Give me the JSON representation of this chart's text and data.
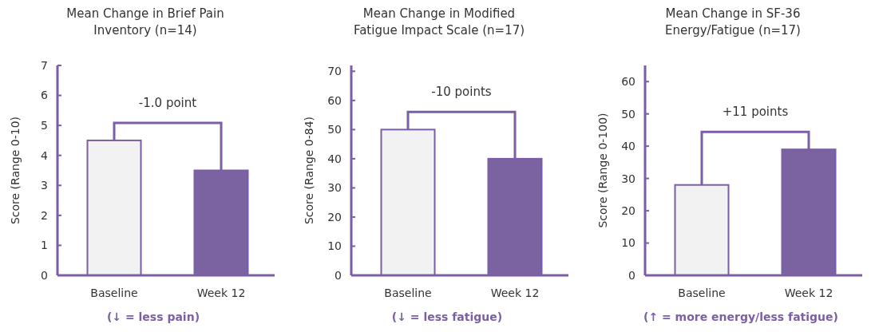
{
  "chart_data": [
    {
      "type": "bar",
      "title": "Mean Change in Brief Pain Inventory (n=14)",
      "ylabel": "Score (Range 0-10)",
      "categories": [
        "Baseline",
        "Week 12"
      ],
      "values": [
        4.5,
        3.5
      ],
      "colors": [
        "#f2f2f2",
        "#7b62a0"
      ],
      "ylim": [
        0,
        7
      ],
      "yticks": [
        0,
        1,
        2,
        3,
        4,
        5,
        6,
        7
      ],
      "annotations": [
        "-1.0 point",
        "(↓ = less pain)"
      ]
    },
    {
      "type": "bar",
      "title": "Mean Change in Modified Fatigue Impact Scale  (n=17)",
      "ylabel": "Score (Range 0-84)",
      "categories": [
        "Baseline",
        "Week 12"
      ],
      "values": [
        50,
        40
      ],
      "colors": [
        "#f2f2f2",
        "#7b62a0"
      ],
      "ylim": [
        0,
        72
      ],
      "yticks": [
        0,
        10,
        20,
        30,
        40,
        50,
        60,
        70
      ],
      "annotations": [
        "-10 points",
        "(↓ = less fatigue)"
      ]
    },
    {
      "type": "bar",
      "title": "Mean Change in SF-36 Energy/Fatigue (n=17)",
      "ylabel": "Score (Range 0-100)",
      "categories": [
        "Baseline",
        "Week 12"
      ],
      "values": [
        28,
        39
      ],
      "colors": [
        "#f2f2f2",
        "#7b62a0"
      ],
      "ylim": [
        0,
        65
      ],
      "yticks": [
        0,
        10,
        20,
        30,
        40,
        50,
        60
      ],
      "annotations": [
        "+11 points",
        "(↑ = more energy/less fatigue)"
      ]
    }
  ]
}
